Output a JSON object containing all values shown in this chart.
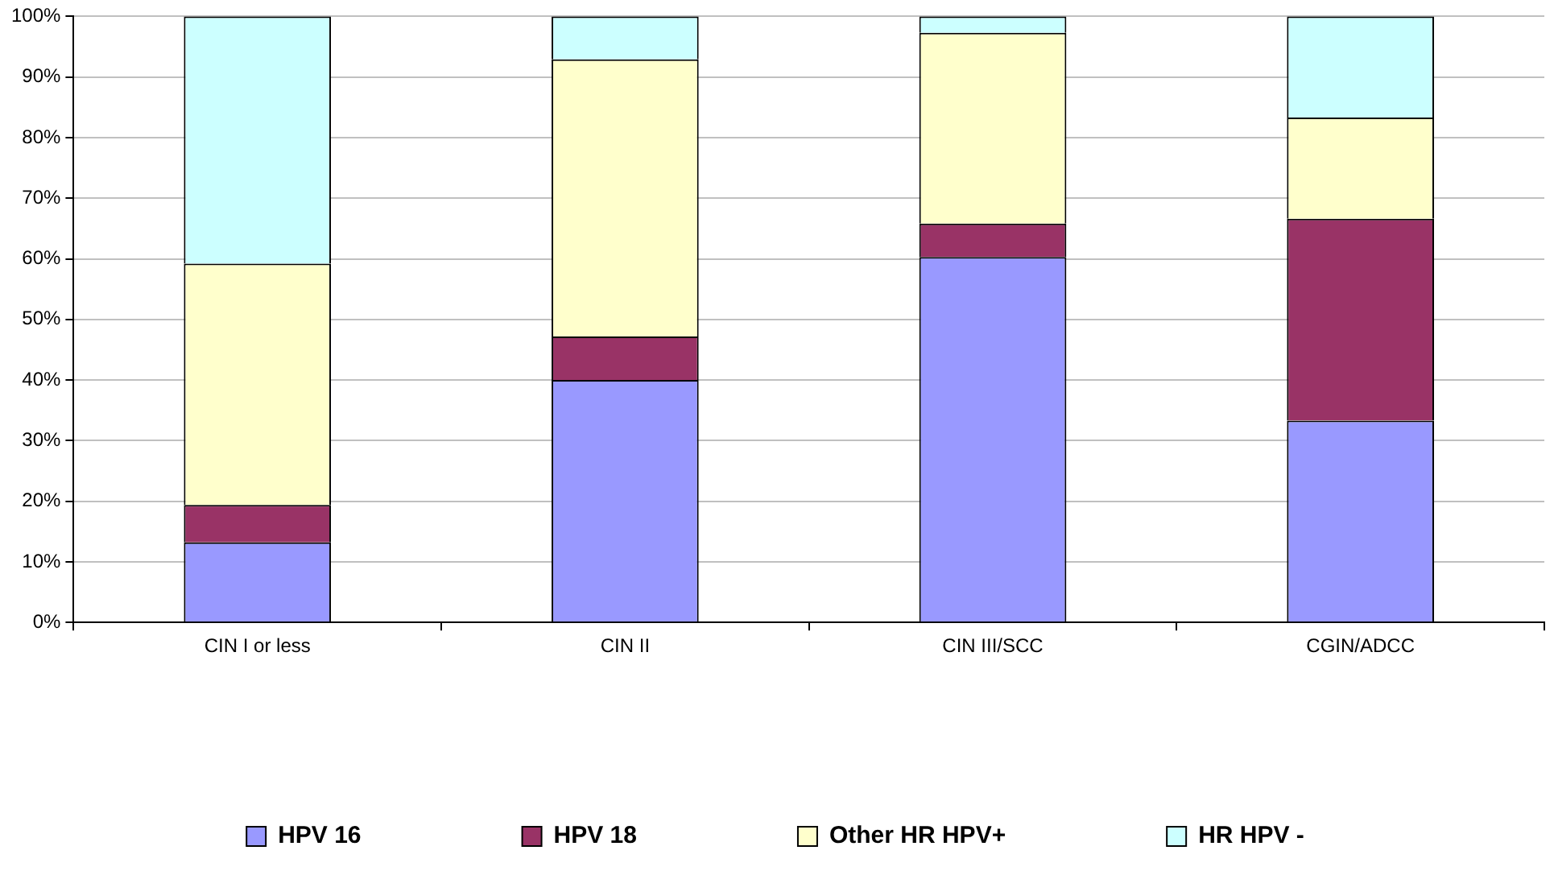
{
  "chart_data": {
    "type": "bar",
    "stacked": true,
    "categories": [
      "CIN I or less",
      "CIN II",
      "CIN III/SCC",
      "CGIN/ADCC"
    ],
    "series": [
      {
        "name": "HPV 16",
        "color": "#9999ff",
        "values": [
          13.2,
          40.0,
          60.3,
          33.3
        ]
      },
      {
        "name": "HPV 18",
        "color": "#993366",
        "values": [
          6.2,
          7.2,
          5.5,
          33.3
        ]
      },
      {
        "name": "Other HR HPV+",
        "color": "#ffffcc",
        "values": [
          39.8,
          45.7,
          31.5,
          16.7
        ]
      },
      {
        "name": "HR HPV -",
        "color": "#ccffff",
        "values": [
          40.8,
          7.1,
          2.7,
          16.7
        ]
      }
    ],
    "ylim": [
      0,
      100
    ],
    "yticks": [
      {
        "value": 0,
        "label": "0%"
      },
      {
        "value": 10,
        "label": "10%"
      },
      {
        "value": 20,
        "label": "20%"
      },
      {
        "value": 30,
        "label": "30%"
      },
      {
        "value": 40,
        "label": "40%"
      },
      {
        "value": 50,
        "label": "50%"
      },
      {
        "value": 60,
        "label": "60%"
      },
      {
        "value": 70,
        "label": "70%"
      },
      {
        "value": 80,
        "label": "80%"
      },
      {
        "value": 90,
        "label": "90%"
      },
      {
        "value": 100,
        "label": "100%"
      }
    ],
    "grid": "y",
    "legend": "bottom"
  }
}
